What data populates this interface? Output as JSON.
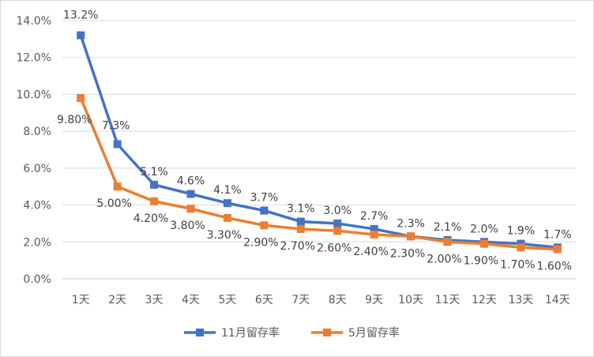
{
  "chart_data": {
    "type": "line",
    "title": "",
    "xlabel": "",
    "ylabel": "",
    "categories": [
      "1天",
      "2天",
      "3天",
      "4天",
      "5天",
      "6天",
      "7天",
      "8天",
      "9天",
      "10天",
      "11天",
      "12天",
      "13天",
      "14天"
    ],
    "ylim": [
      0,
      14
    ],
    "y_ticks": [
      0,
      2,
      4,
      6,
      8,
      10,
      12,
      14
    ],
    "y_tick_labels": [
      "0.0%",
      "2.0%",
      "4.0%",
      "6.0%",
      "8.0%",
      "10.0%",
      "12.0%",
      "14.0%"
    ],
    "grid": "horizontal",
    "legend_position": "bottom",
    "series": [
      {
        "name": "11月留存率",
        "color": "#4472c4",
        "marker": "square",
        "values": [
          13.2,
          7.3,
          5.1,
          4.6,
          4.1,
          3.7,
          3.1,
          3.0,
          2.7,
          2.3,
          2.1,
          2.0,
          1.9,
          1.7
        ],
        "labels": [
          "13.2%",
          "7.3%",
          "5.1%",
          "4.6%",
          "4.1%",
          "3.7%",
          "3.1%",
          "3.0%",
          "2.7%",
          "2.3%",
          "2.1%",
          "2.0%",
          "1.9%",
          "1.7%"
        ]
      },
      {
        "name": "5月留存率",
        "color": "#ed7d31",
        "marker": "square",
        "values": [
          9.8,
          5.0,
          4.2,
          3.8,
          3.3,
          2.9,
          2.7,
          2.6,
          2.4,
          2.3,
          2.0,
          1.9,
          1.7,
          1.6
        ],
        "labels": [
          "9.80%",
          "5.00%",
          "4.20%",
          "3.80%",
          "3.30%",
          "2.90%",
          "2.70%",
          "2.60%",
          "2.40%",
          "2.30%",
          "2.00%",
          "1.90%",
          "1.70%",
          "1.60%"
        ]
      }
    ]
  }
}
